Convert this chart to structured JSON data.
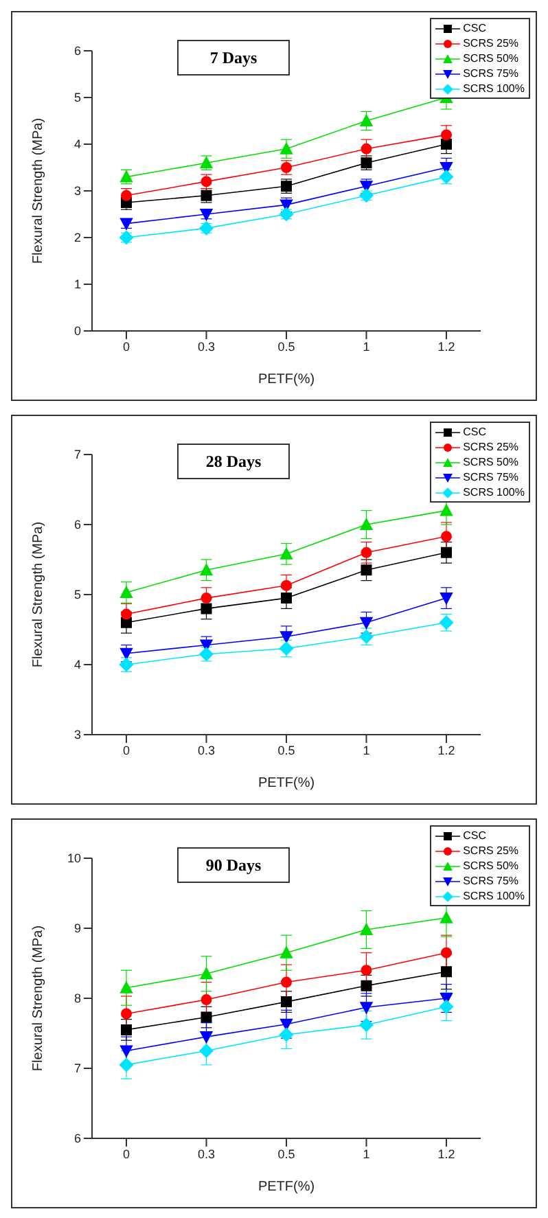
{
  "chart_data": [
    {
      "type": "line",
      "title": "7 Days",
      "xlabel": "PETF(%)",
      "ylabel": "Flexural Strength (MPa)",
      "categories": [
        "0",
        "0.3",
        "0.5",
        "1",
        "1.2"
      ],
      "ylim": [
        0,
        6
      ],
      "yticks": [
        0,
        1,
        2,
        3,
        4,
        5,
        6
      ],
      "legend": "top right",
      "line_style": "solid",
      "series": [
        {
          "name": "CSC",
          "color": "#000000",
          "marker": "square",
          "values": [
            2.75,
            2.9,
            3.1,
            3.6,
            4.0
          ],
          "errors": [
            0.15,
            0.15,
            0.15,
            0.15,
            0.2
          ]
        },
        {
          "name": "SCRS 25%",
          "color": "#ff0000",
          "marker": "circle",
          "values": [
            2.9,
            3.2,
            3.5,
            3.9,
            4.2
          ],
          "errors": [
            0.15,
            0.15,
            0.15,
            0.2,
            0.2
          ]
        },
        {
          "name": "SCRS 50%",
          "color": "#00dd00",
          "marker": "triangle",
          "values": [
            3.3,
            3.6,
            3.9,
            4.5,
            5.0
          ],
          "errors": [
            0.15,
            0.15,
            0.2,
            0.2,
            0.25
          ]
        },
        {
          "name": "SCRS 75%",
          "color": "#0000ff",
          "marker": "triangle-down",
          "values": [
            2.3,
            2.5,
            2.7,
            3.1,
            3.5
          ],
          "errors": [
            0.1,
            0.1,
            0.15,
            0.15,
            0.2
          ]
        },
        {
          "name": "SCRS 100%",
          "color": "#00e5ff",
          "marker": "diamond",
          "values": [
            2.0,
            2.2,
            2.5,
            2.9,
            3.3
          ],
          "errors": [
            0.1,
            0.1,
            0.1,
            0.1,
            0.15
          ]
        }
      ]
    },
    {
      "type": "line",
      "title": "28 Days",
      "xlabel": "PETF(%)",
      "ylabel": "Flexural Strength (MPa)",
      "categories": [
        "0",
        "0.3",
        "0.5",
        "1",
        "1.2"
      ],
      "ylim": [
        3,
        7
      ],
      "yticks": [
        3,
        4,
        5,
        6,
        7
      ],
      "legend": "top right",
      "line_style": "solid",
      "series": [
        {
          "name": "CSC",
          "color": "#000000",
          "marker": "square",
          "values": [
            4.6,
            4.8,
            4.95,
            5.35,
            5.6
          ],
          "errors": [
            0.15,
            0.15,
            0.15,
            0.15,
            0.15
          ]
        },
        {
          "name": "SCRS 25%",
          "color": "#ff0000",
          "marker": "circle",
          "values": [
            4.72,
            4.95,
            5.13,
            5.6,
            5.83
          ],
          "errors": [
            0.15,
            0.15,
            0.15,
            0.15,
            0.2
          ]
        },
        {
          "name": "SCRS 50%",
          "color": "#00dd00",
          "marker": "triangle",
          "values": [
            5.03,
            5.35,
            5.58,
            6.0,
            6.2
          ],
          "errors": [
            0.15,
            0.15,
            0.15,
            0.2,
            0.2
          ]
        },
        {
          "name": "SCRS 75%",
          "color": "#0000ff",
          "marker": "triangle-down",
          "values": [
            4.16,
            4.28,
            4.4,
            4.6,
            4.95
          ],
          "errors": [
            0.12,
            0.12,
            0.15,
            0.15,
            0.15
          ]
        },
        {
          "name": "SCRS 100%",
          "color": "#00e5ff",
          "marker": "diamond",
          "values": [
            4.0,
            4.15,
            4.23,
            4.4,
            4.6
          ],
          "errors": [
            0.1,
            0.1,
            0.12,
            0.12,
            0.12
          ]
        }
      ]
    },
    {
      "type": "line",
      "title": "90 Days",
      "xlabel": "PETF(%)",
      "ylabel": "Flexural Strength (MPa)",
      "categories": [
        "0",
        "0.3",
        "0.5",
        "1",
        "1.2"
      ],
      "ylim": [
        6,
        10
      ],
      "yticks": [
        6,
        7,
        8,
        9,
        10
      ],
      "legend": "top right",
      "line_style": "solid",
      "series": [
        {
          "name": "CSC",
          "color": "#000000",
          "marker": "square",
          "values": [
            7.55,
            7.73,
            7.95,
            8.18,
            8.38
          ],
          "errors": [
            0.15,
            0.15,
            0.15,
            0.15,
            0.25
          ]
        },
        {
          "name": "SCRS 25%",
          "color": "#ff0000",
          "marker": "circle",
          "values": [
            7.78,
            7.98,
            8.23,
            8.4,
            8.65
          ],
          "errors": [
            0.25,
            0.25,
            0.25,
            0.25,
            0.25
          ]
        },
        {
          "name": "SCRS 50%",
          "color": "#00dd00",
          "marker": "triangle",
          "values": [
            8.15,
            8.35,
            8.65,
            8.98,
            9.15
          ],
          "errors": [
            0.25,
            0.25,
            0.25,
            0.27,
            0.27
          ]
        },
        {
          "name": "SCRS 75%",
          "color": "#0000ff",
          "marker": "triangle-down",
          "values": [
            7.25,
            7.45,
            7.63,
            7.87,
            8.0
          ],
          "errors": [
            0.2,
            0.2,
            0.2,
            0.2,
            0.2
          ]
        },
        {
          "name": "SCRS 100%",
          "color": "#00e5ff",
          "marker": "diamond",
          "values": [
            7.05,
            7.25,
            7.48,
            7.62,
            7.88
          ],
          "errors": [
            0.2,
            0.2,
            0.2,
            0.2,
            0.2
          ]
        }
      ]
    }
  ]
}
